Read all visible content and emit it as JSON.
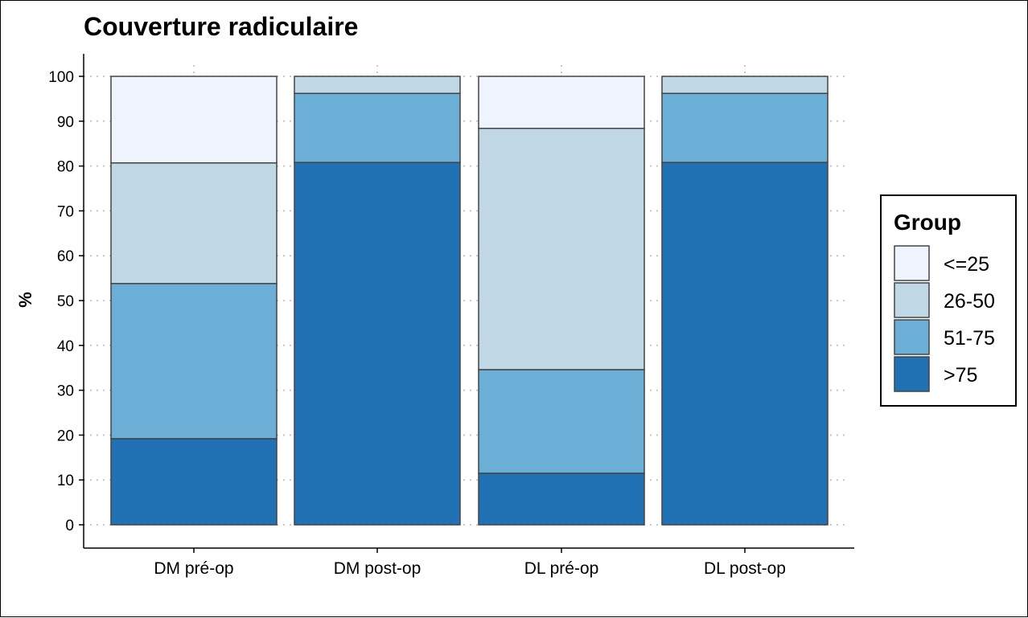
{
  "chart_data": {
    "type": "bar",
    "stacked": true,
    "title": "Couverture radiculaire",
    "xlabel": "",
    "ylabel": "%",
    "ylim": [
      0,
      100
    ],
    "yticks": [
      "0",
      "10",
      "20",
      "30",
      "40",
      "50",
      "60",
      "70",
      "80",
      "90",
      "100"
    ],
    "grid": "dotted horizontal and vertical",
    "categories": [
      "DM pré-op",
      "DM post-op",
      "DL pré-op",
      "DL post-op"
    ],
    "legend": {
      "title": "Group",
      "position": "right",
      "entries": [
        "<=25",
        "26-50",
        "51-75",
        ">75"
      ]
    },
    "series": [
      {
        "name": ">75",
        "color": "#2171b5",
        "values": [
          19.2,
          80.8,
          11.5,
          80.8
        ]
      },
      {
        "name": "51-75",
        "color": "#6baed6",
        "values": [
          34.6,
          15.4,
          23.1,
          15.4
        ]
      },
      {
        "name": "26-50",
        "color": "#c0d7e5",
        "values": [
          26.9,
          3.8,
          53.8,
          3.8
        ]
      },
      {
        "name": "<=25",
        "color": "#eef3fd",
        "values": [
          19.3,
          0,
          11.6,
          0
        ]
      }
    ]
  }
}
